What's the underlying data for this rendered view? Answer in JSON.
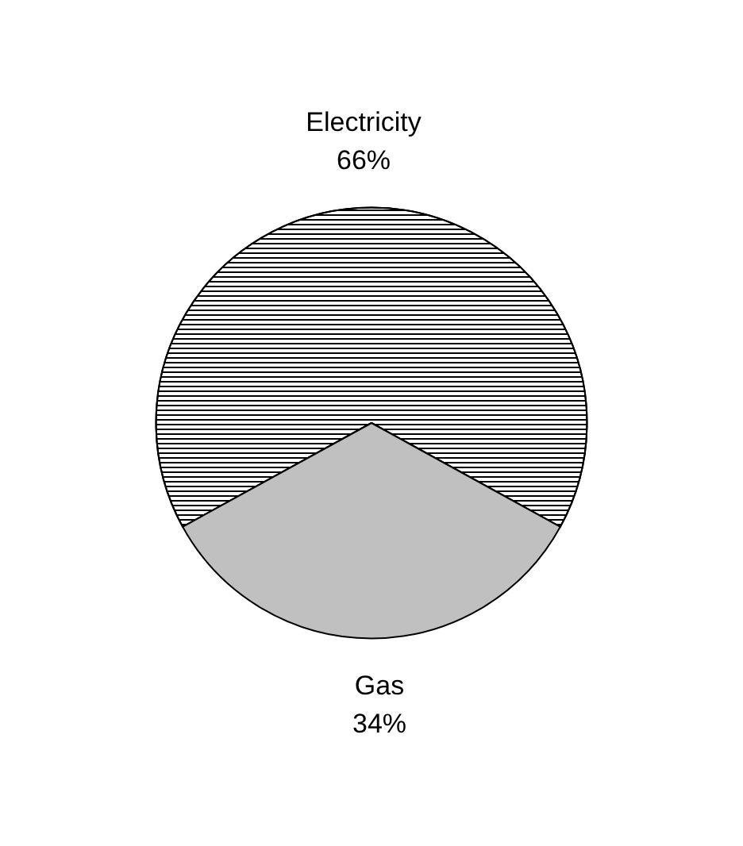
{
  "chart_data": {
    "type": "pie",
    "categories": [
      "Electricity",
      "Gas"
    ],
    "values": [
      66,
      34
    ],
    "colors": [
      "#000000",
      "#c0c0c0"
    ],
    "value_labels": [
      "66%",
      "34%"
    ],
    "legend": false
  }
}
